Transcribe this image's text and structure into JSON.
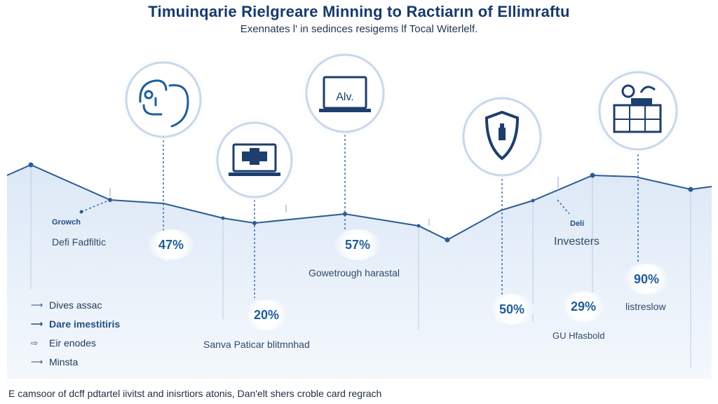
{
  "title": "Timuinqarie Rielgreare Minning to Ractiarın of Ellimraftu",
  "subtitle": "Exennates l' in sedinces resigems lf Tocal Witerlelf.",
  "icons": [
    {
      "name": "person-head-icon"
    },
    {
      "name": "laptop-icon"
    },
    {
      "name": "laptop-alv-icon",
      "text": "Alv."
    },
    {
      "name": "shield-icon"
    },
    {
      "name": "robot-dashboard-icon"
    }
  ],
  "labels": {
    "growth": "Growch",
    "defi_left": "Defi Fadfiltic",
    "growthrough": "Gowetrough harastal",
    "deli": "Deli",
    "investers": "Investers",
    "savna": "Sanva Paticar blitmnhad",
    "gu": "GU Hfasbold",
    "listreslow": "listreslow"
  },
  "percentages": [
    "47%",
    "20%",
    "57%",
    "50%",
    "29%",
    "90%"
  ],
  "legend": [
    {
      "label": "Dives assac",
      "bold": false
    },
    {
      "label": "Dare imestitiris",
      "bold": true
    },
    {
      "label": "Eir enodes",
      "bold": false
    },
    {
      "label": "Minsta",
      "bold": false
    }
  ],
  "footer": "E camsoor of dcff pdtartel iivitst and inisrtiors atonis, Dan'elt shers croble card regrach",
  "colors": {
    "accent": "#1f5d99",
    "line": "#2d5c93",
    "area": "#e9f1fa"
  }
}
